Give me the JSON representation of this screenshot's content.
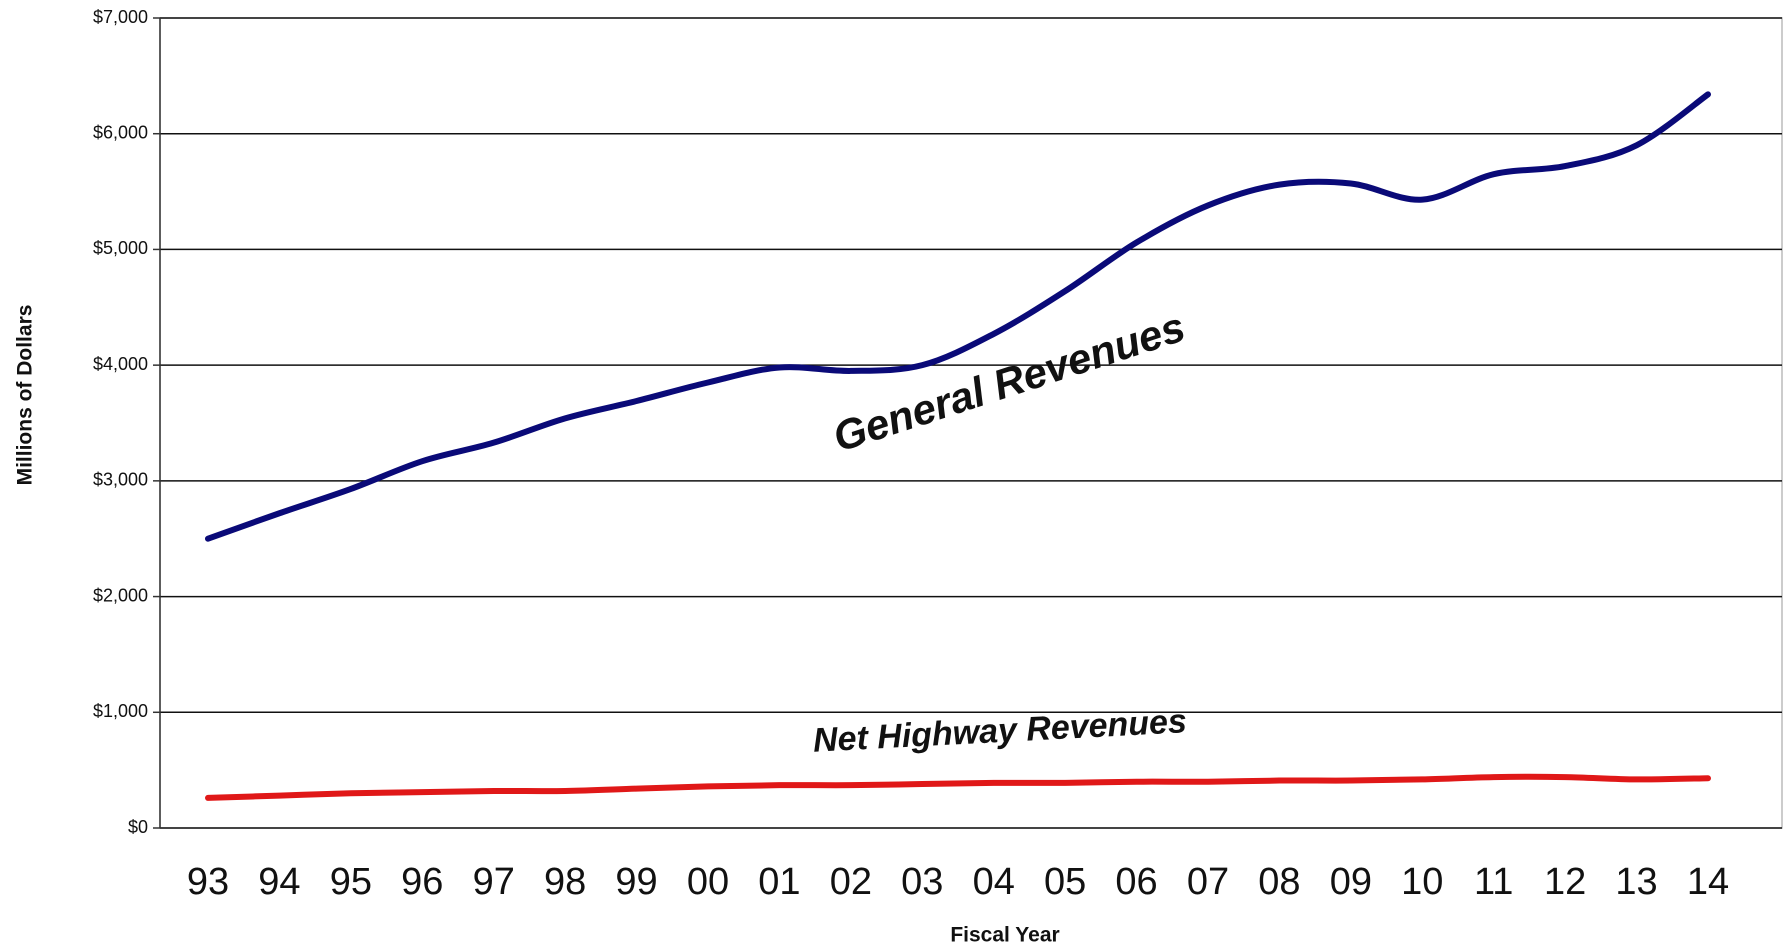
{
  "chart_data": {
    "type": "line",
    "x_label": "Fiscal Year",
    "y_label": "Millions of Dollars",
    "categories": [
      "93",
      "94",
      "95",
      "96",
      "97",
      "98",
      "99",
      "00",
      "01",
      "02",
      "03",
      "04",
      "05",
      "06",
      "07",
      "08",
      "09",
      "10",
      "11",
      "12",
      "13",
      "14"
    ],
    "series": [
      {
        "name": "General Revenues",
        "color": "#0a0a78",
        "values": [
          2500,
          2720,
          2930,
          3170,
          3330,
          3540,
          3690,
          3850,
          3980,
          3950,
          4000,
          4270,
          4640,
          5060,
          5380,
          5560,
          5570,
          5430,
          5650,
          5720,
          5900,
          6340
        ]
      },
      {
        "name": "Net Highway Revenues",
        "color": "#e01818",
        "values": [
          260,
          280,
          300,
          310,
          320,
          320,
          340,
          360,
          370,
          370,
          380,
          390,
          390,
          400,
          400,
          410,
          410,
          420,
          440,
          440,
          420,
          430
        ]
      }
    ],
    "ylim": [
      0,
      7000
    ],
    "yticks": [
      {
        "value": 0,
        "label": "$0"
      },
      {
        "value": 1000,
        "label": "$1,000"
      },
      {
        "value": 2000,
        "label": "$2,000"
      },
      {
        "value": 3000,
        "label": "$3,000"
      },
      {
        "value": 4000,
        "label": "$4,000"
      },
      {
        "value": 5000,
        "label": "$5,000"
      },
      {
        "value": 6000,
        "label": "$6,000"
      },
      {
        "value": 7000,
        "label": "$7,000"
      }
    ],
    "grid": true
  }
}
